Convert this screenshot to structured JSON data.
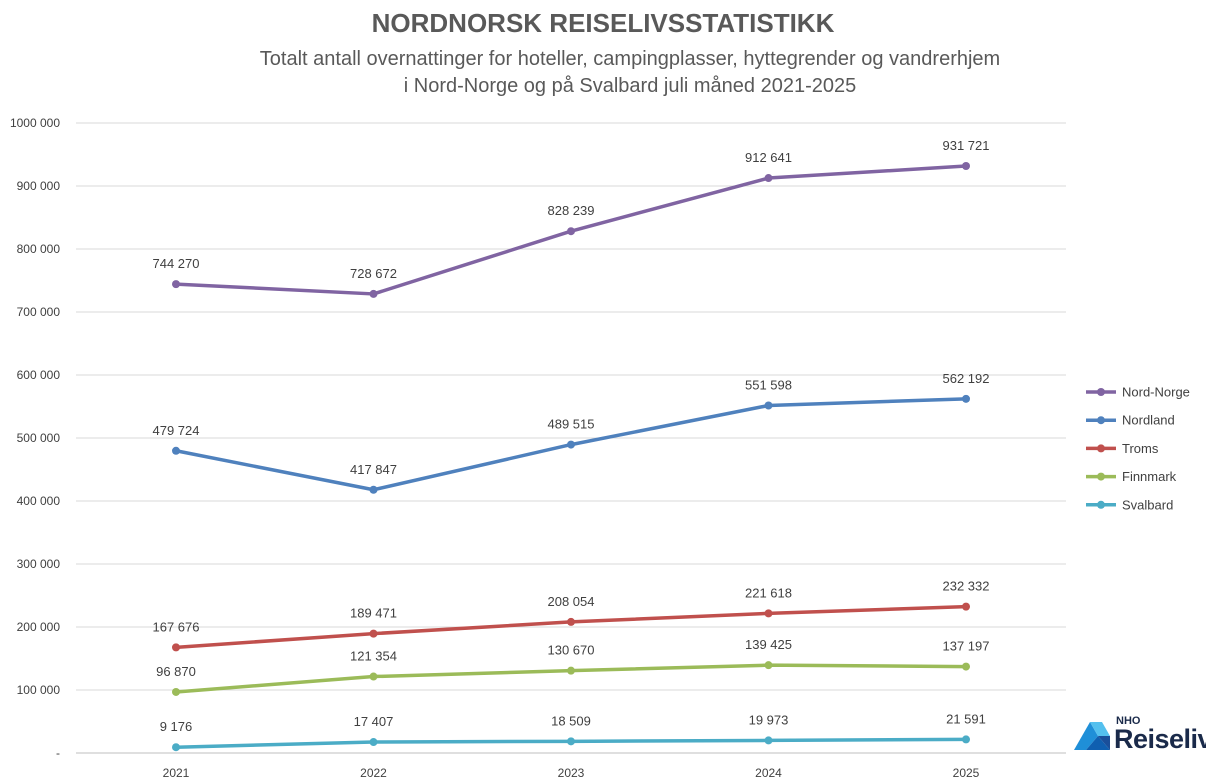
{
  "chart_data": {
    "type": "line",
    "title": "NORDNORSK REISELIVSSTATISTIKK",
    "subtitle_line1": "Totalt antall overnattinger for hoteller, campingplasser, hyttegrender og vandrerhjem",
    "subtitle_line2": "i Nord-Norge og på Svalbard juli måned 2021-2025",
    "categories": [
      "2021",
      "2022",
      "2023",
      "2024",
      "2025"
    ],
    "ylim": [
      0,
      1000000
    ],
    "yticks": [
      0,
      100000,
      200000,
      300000,
      400000,
      500000,
      600000,
      700000,
      800000,
      900000,
      1000000
    ],
    "ytick_labels": [
      "-",
      "100 000",
      "200 000",
      "300 000",
      "400 000",
      "500 000",
      "600 000",
      "700 000",
      "800 000",
      "900 000",
      "1000 000"
    ],
    "grid": true,
    "legend_position": "right",
    "series": [
      {
        "name": "Nord-Norge",
        "color": "#8064a2",
        "values": [
          744270,
          728672,
          828239,
          912641,
          931721
        ],
        "labels": [
          "744 270",
          "728 672",
          "828 239",
          "912 641",
          "931 721"
        ]
      },
      {
        "name": "Nordland",
        "color": "#4f81bd",
        "values": [
          479724,
          417847,
          489515,
          551598,
          562192
        ],
        "labels": [
          "479 724",
          "417 847",
          "489 515",
          "551 598",
          "562 192"
        ]
      },
      {
        "name": "Troms",
        "color": "#c0504d",
        "values": [
          167676,
          189471,
          208054,
          221618,
          232332
        ],
        "labels": [
          "167 676",
          "189 471",
          "208 054",
          "221 618",
          "232 332"
        ]
      },
      {
        "name": "Finnmark",
        "color": "#9bbb59",
        "values": [
          96870,
          121354,
          130670,
          139425,
          137197
        ],
        "labels": [
          "96 870",
          "121 354",
          "130 670",
          "139 425",
          "137 197"
        ]
      },
      {
        "name": "Svalbard",
        "color": "#4bacc6",
        "values": [
          9176,
          17407,
          18509,
          19973,
          21591
        ],
        "labels": [
          "9 176",
          "17 407",
          "18 509",
          "19 973",
          "21 591"
        ]
      }
    ]
  },
  "logo": {
    "small_text": "NHO",
    "big_text": "Reiseliv"
  }
}
